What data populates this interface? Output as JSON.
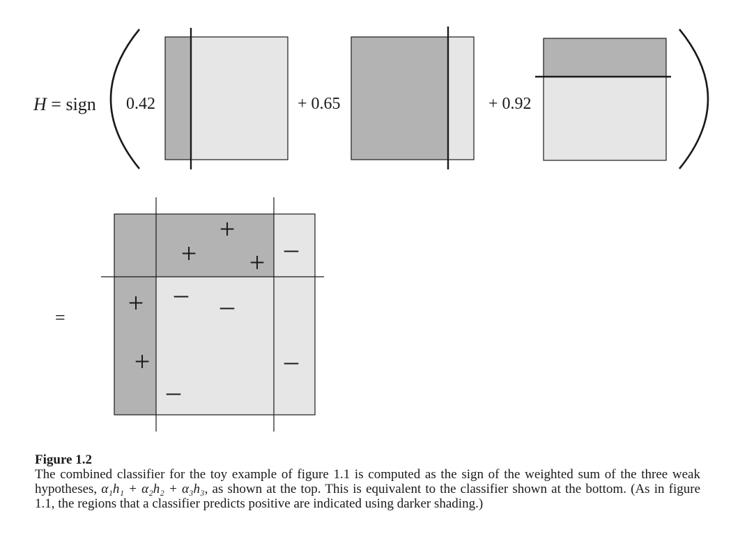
{
  "equation": {
    "lhs_var": "H",
    "lhs_rest": " = sign",
    "coefficients": [
      "0.42",
      "+ 0.65",
      "+ 0.92"
    ],
    "equals": "="
  },
  "combined_labels": {
    "plus": "+",
    "minus": "–"
  },
  "colors": {
    "dark_region": "#b3b3b3",
    "light_region": "#e6e6e6",
    "ink": "#1a1a1a"
  },
  "caption": {
    "title": "Figure 1.2",
    "text_before": "The combined classifier for the toy example of figure 1.1 is computed as the sign of the weighted sum of the three weak hypotheses, ",
    "math": "α₁h₁ + α₂h₂ + α₃h₃",
    "text_after": ", as shown at the top. This is equivalent to the classifier shown at the bottom. (As in figure 1.1, the regions that a classifier predicts positive are indicated using darker shading.)"
  }
}
